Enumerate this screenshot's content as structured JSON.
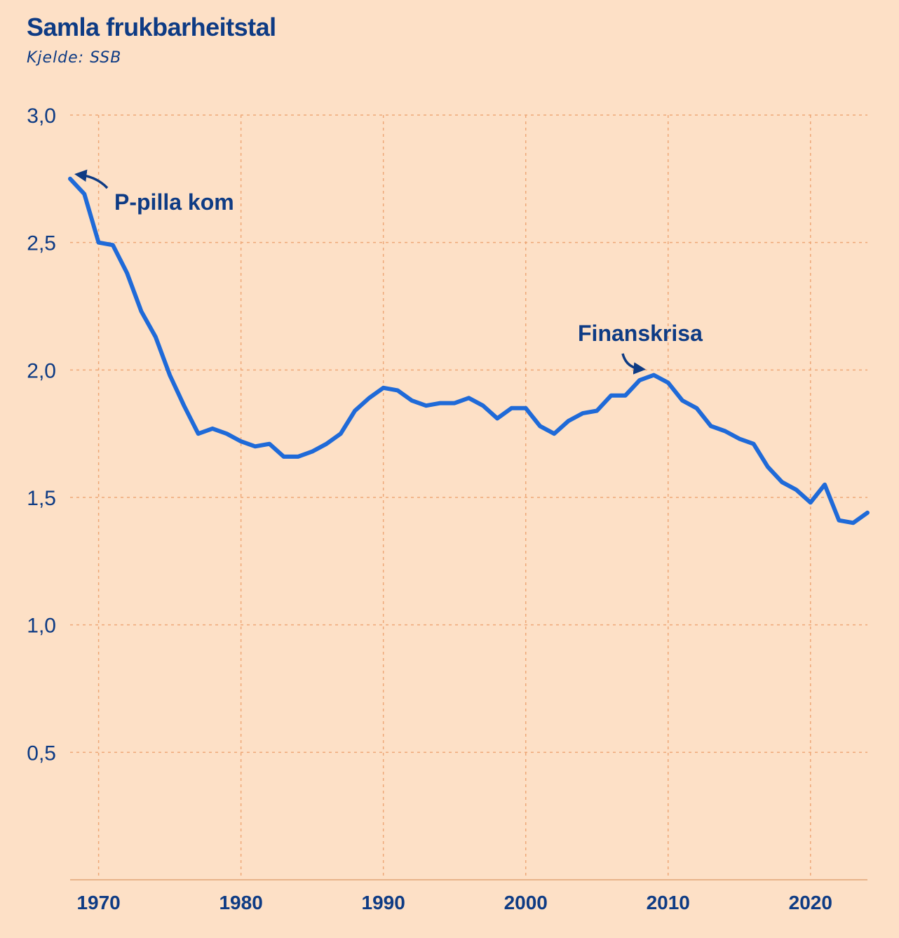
{
  "chart_data": {
    "type": "line",
    "title": "Samla frukbarheitstal",
    "subtitle": "Kjelde: SSB",
    "xlabel": "",
    "ylabel": "",
    "xlim": [
      1968,
      2024
    ],
    "ylim": [
      0,
      3.0
    ],
    "yticks": [
      {
        "value": 3.0,
        "label": "3,0"
      },
      {
        "value": 2.5,
        "label": "2,5"
      },
      {
        "value": 2.0,
        "label": "2,0"
      },
      {
        "value": 1.5,
        "label": "1,5"
      },
      {
        "value": 1.0,
        "label": "1,0"
      },
      {
        "value": 0.5,
        "label": "0,5"
      }
    ],
    "xticks": [
      {
        "value": 1970,
        "label": "1970"
      },
      {
        "value": 1980,
        "label": "1980"
      },
      {
        "value": 1990,
        "label": "1990"
      },
      {
        "value": 2000,
        "label": "2000"
      },
      {
        "value": 2010,
        "label": "2010"
      },
      {
        "value": 2020,
        "label": "2020"
      }
    ],
    "grid": true,
    "series": [
      {
        "color": "#1f6ad8",
        "x": [
          1968,
          1969,
          1970,
          1971,
          1972,
          1973,
          1974,
          1975,
          1976,
          1977,
          1978,
          1979,
          1980,
          1981,
          1982,
          1983,
          1984,
          1985,
          1986,
          1987,
          1988,
          1989,
          1990,
          1991,
          1992,
          1993,
          1994,
          1995,
          1996,
          1997,
          1998,
          1999,
          2000,
          2001,
          2002,
          2003,
          2004,
          2005,
          2006,
          2007,
          2008,
          2009,
          2010,
          2011,
          2012,
          2013,
          2014,
          2015,
          2016,
          2017,
          2018,
          2019,
          2020,
          2021,
          2022,
          2023,
          2024
        ],
        "values": [
          2.75,
          2.69,
          2.5,
          2.49,
          2.38,
          2.23,
          2.13,
          1.98,
          1.86,
          1.75,
          1.77,
          1.75,
          1.72,
          1.7,
          1.71,
          1.66,
          1.66,
          1.68,
          1.71,
          1.75,
          1.84,
          1.89,
          1.93,
          1.92,
          1.88,
          1.86,
          1.87,
          1.87,
          1.89,
          1.86,
          1.81,
          1.85,
          1.85,
          1.78,
          1.75,
          1.8,
          1.83,
          1.84,
          1.9,
          1.9,
          1.96,
          1.98,
          1.95,
          1.88,
          1.85,
          1.78,
          1.76,
          1.73,
          1.71,
          1.62,
          1.56,
          1.53,
          1.48,
          1.55,
          1.41,
          1.4,
          1.44
        ]
      }
    ],
    "annotations": [
      {
        "text": "P-pilla kom",
        "x": 1968.5
      },
      {
        "text": "Finanskrisa",
        "x": 2009
      }
    ]
  },
  "colors": {
    "background": "#fde0c6",
    "grid": "#eea777",
    "axis": "#e8b48a",
    "text": "#0e3b84",
    "line": "#1f6ad8"
  }
}
